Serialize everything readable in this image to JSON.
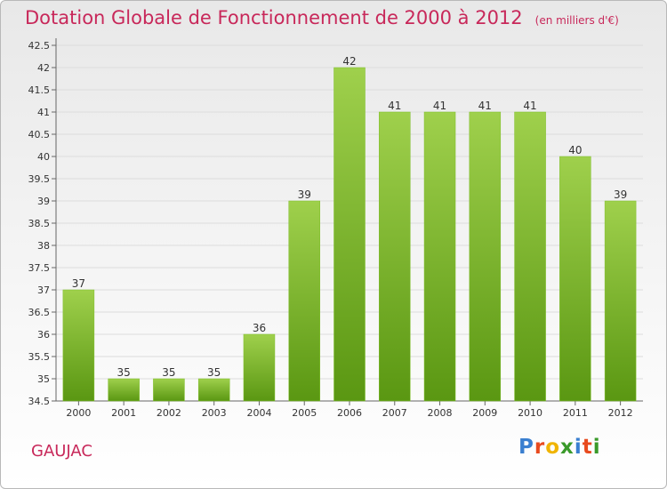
{
  "title": "Dotation Globale de Fonctionnement de 2000 à 2012",
  "unit": "(en milliers d'€)",
  "commune": "GAUJAC",
  "logo": {
    "letters": [
      "P",
      "r",
      "o",
      "x",
      "i",
      "t",
      "i"
    ]
  },
  "colors": {
    "title": "#c8285a",
    "bar_top": "#9fd04c",
    "bar_bottom": "#5a9712",
    "logo": [
      "#3a7fd0",
      "#e84a1e",
      "#f0b400",
      "#3a9a2a",
      "#3a7fd0",
      "#e84a1e",
      "#3a9a2a"
    ]
  },
  "chart_data": {
    "type": "bar",
    "categories": [
      "2000",
      "2001",
      "2002",
      "2003",
      "2004",
      "2005",
      "2006",
      "2007",
      "2008",
      "2009",
      "2010",
      "2011",
      "2012"
    ],
    "values": [
      37,
      35,
      35,
      35,
      36,
      39,
      42,
      41,
      41,
      41,
      41,
      40,
      39
    ],
    "data_labels": [
      "37",
      "35",
      "35",
      "35",
      "36",
      "39",
      "42",
      "41",
      "41",
      "41",
      "41",
      "40",
      "39"
    ],
    "ylim": [
      34.5,
      42.5
    ],
    "yticks": [
      "34.5",
      "35",
      "35.5",
      "36",
      "36.5",
      "37",
      "37.5",
      "38",
      "38.5",
      "39",
      "39.5",
      "40",
      "40.5",
      "41",
      "41.5",
      "42",
      "42.5"
    ],
    "grid": true,
    "xlabel": "",
    "ylabel": ""
  }
}
